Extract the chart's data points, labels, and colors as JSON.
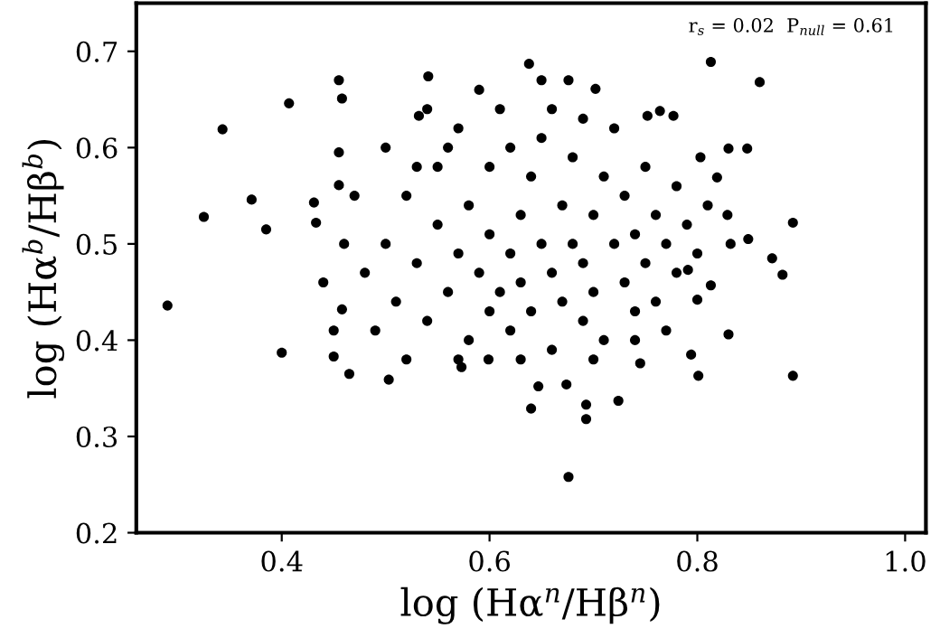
{
  "chart_data": {
    "type": "scatter",
    "xlabel": "log (Hα$^{n}$/Hβ$^{n}$)",
    "ylabel": "log (Hα$^{b}$/Hβ$^{b}$)",
    "annotations": [
      "r$_{s}$ = 0.02  P$_{null}$ = 0.61"
    ],
    "xlim": [
      0.26,
      1.02
    ],
    "ylim": [
      0.2,
      0.75
    ],
    "xticks": [
      0.4,
      0.6,
      0.8,
      {
        "value": 1.0,
        "label": "1.0"
      }
    ],
    "yticks": [
      0.2,
      0.3,
      0.4,
      0.5,
      0.6,
      0.7
    ],
    "grid": false,
    "legend": false,
    "marker": "circle",
    "series": [
      {
        "color": "#000000",
        "x": [
          0.29,
          0.325,
          0.343,
          0.371,
          0.385,
          0.407,
          0.455,
          0.458,
          0.455,
          0.455,
          0.431,
          0.433,
          0.541,
          0.532,
          0.4,
          0.45,
          0.465,
          0.503,
          0.458,
          0.573,
          0.599,
          0.676,
          0.64,
          0.693,
          0.693,
          0.724,
          0.892,
          0.801,
          0.83,
          0.794,
          0.647,
          0.674,
          0.745,
          0.813,
          0.86,
          0.892,
          0.882,
          0.872,
          0.849,
          0.832,
          0.829,
          0.819,
          0.83,
          0.848,
          0.803,
          0.638,
          0.676,
          0.65,
          0.702,
          0.752,
          0.764,
          0.777,
          0.813,
          0.8,
          0.791,
          0.48,
          0.5,
          0.51,
          0.52,
          0.53,
          0.54,
          0.55,
          0.55,
          0.56,
          0.57,
          0.57,
          0.58,
          0.58,
          0.59,
          0.6,
          0.6,
          0.6,
          0.61,
          0.61,
          0.62,
          0.62,
          0.63,
          0.63,
          0.64,
          0.64,
          0.65,
          0.65,
          0.66,
          0.66,
          0.67,
          0.67,
          0.68,
          0.68,
          0.69,
          0.69,
          0.7,
          0.7,
          0.71,
          0.71,
          0.72,
          0.72,
          0.73,
          0.73,
          0.74,
          0.74,
          0.75,
          0.75,
          0.76,
          0.76,
          0.77,
          0.77,
          0.78,
          0.78,
          0.79,
          0.46,
          0.47,
          0.49,
          0.5,
          0.52,
          0.53,
          0.54,
          0.56,
          0.59,
          0.62,
          0.66,
          0.69,
          0.57,
          0.63,
          0.7,
          0.74,
          0.8,
          0.81,
          0.44,
          0.45
        ],
        "values": [
          0.436,
          0.528,
          0.619,
          0.546,
          0.515,
          0.646,
          0.67,
          0.651,
          0.595,
          0.561,
          0.543,
          0.522,
          0.674,
          0.633,
          0.387,
          0.383,
          0.365,
          0.359,
          0.432,
          0.372,
          0.38,
          0.258,
          0.329,
          0.318,
          0.333,
          0.337,
          0.363,
          0.363,
          0.406,
          0.385,
          0.352,
          0.354,
          0.376,
          0.689,
          0.668,
          0.522,
          0.468,
          0.485,
          0.505,
          0.5,
          0.53,
          0.569,
          0.599,
          0.599,
          0.59,
          0.687,
          0.67,
          0.67,
          0.661,
          0.633,
          0.638,
          0.633,
          0.457,
          0.442,
          0.473,
          0.47,
          0.5,
          0.44,
          0.55,
          0.48,
          0.42,
          0.52,
          0.58,
          0.45,
          0.49,
          0.62,
          0.4,
          0.54,
          0.47,
          0.43,
          0.51,
          0.58,
          0.45,
          0.64,
          0.49,
          0.41,
          0.53,
          0.46,
          0.57,
          0.43,
          0.5,
          0.61,
          0.47,
          0.39,
          0.54,
          0.44,
          0.5,
          0.59,
          0.42,
          0.48,
          0.53,
          0.45,
          0.57,
          0.4,
          0.5,
          0.62,
          0.46,
          0.55,
          0.43,
          0.51,
          0.48,
          0.58,
          0.44,
          0.53,
          0.5,
          0.41,
          0.47,
          0.56,
          0.52,
          0.5,
          0.55,
          0.41,
          0.6,
          0.38,
          0.58,
          0.64,
          0.6,
          0.66,
          0.6,
          0.64,
          0.63,
          0.38,
          0.38,
          0.38,
          0.4,
          0.49,
          0.54,
          0.46,
          0.41
        ]
      }
    ]
  }
}
